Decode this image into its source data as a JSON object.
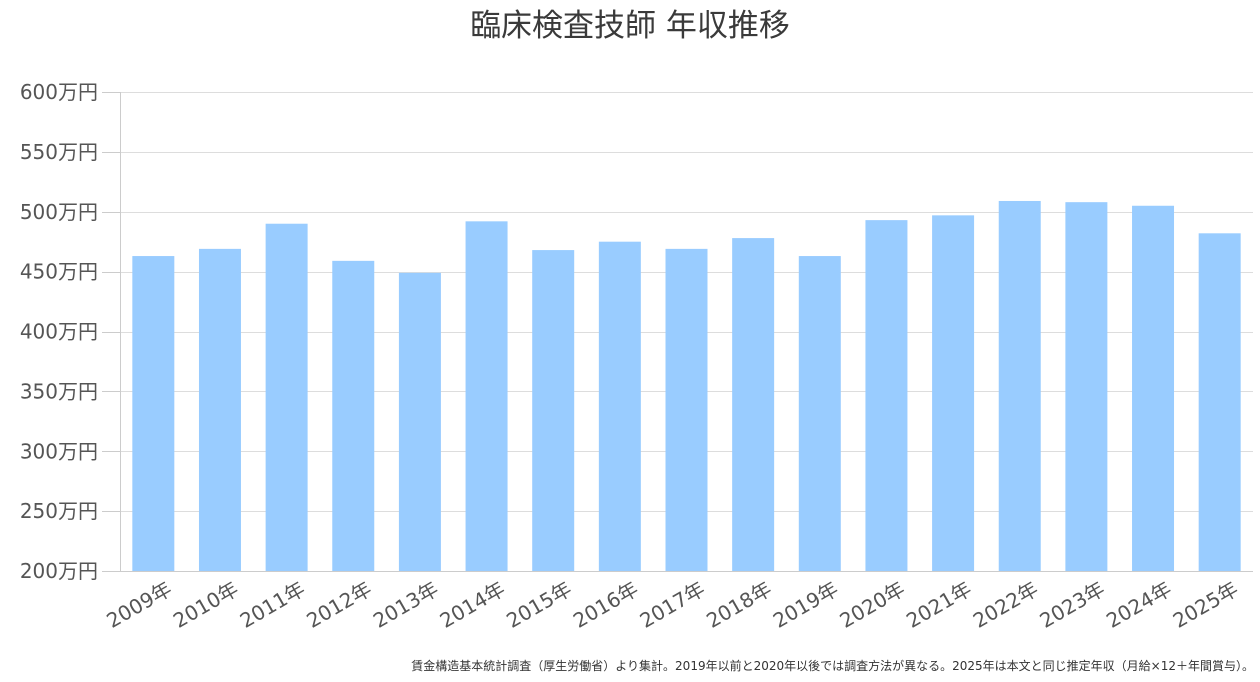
{
  "chart_data": {
    "type": "bar",
    "title": "臨床検査技師 年収推移",
    "categories": [
      "2009年",
      "2010年",
      "2011年",
      "2012年",
      "2013年",
      "2014年",
      "2015年",
      "2016年",
      "2017年",
      "2018年",
      "2019年",
      "2020年",
      "2021年",
      "2022年",
      "2023年",
      "2024年",
      "2025年"
    ],
    "values": [
      463,
      469,
      490,
      459,
      449,
      492,
      468,
      475,
      469,
      478,
      463,
      493,
      497,
      509,
      508,
      505,
      482
    ],
    "y_ticks": [
      200,
      250,
      300,
      350,
      400,
      450,
      500,
      550,
      600
    ],
    "y_tick_suffix": "万円",
    "ylim": [
      200,
      600
    ],
    "grid": true,
    "bar_color": "#99ccff",
    "footnote": "賃金構造基本統計調査（厚生労働省）より集計。2019年以前と2020年以後では調査方法が異なる。2025年は本文と同じ推定年収（月給×12＋年間賞与）。"
  }
}
